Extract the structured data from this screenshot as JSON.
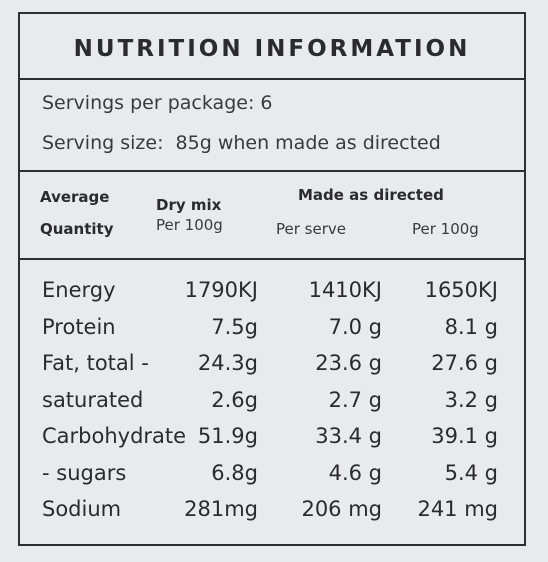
{
  "header": {
    "title": "NUTRITION INFORMATION",
    "servings": "Servings per package: 6",
    "serving_size": "Serving size:  85g when made as directed"
  },
  "table": {
    "header": {
      "average": "Average",
      "quantity": "Quantity",
      "dry_mix": "Dry mix",
      "dry_per100": "Per 100g",
      "made": "Made as directed",
      "made_serve": "Per serve",
      "made_per100": "Per 100g"
    },
    "rows": [
      [
        "Energy",
        "1790KJ",
        "1410KJ",
        "1650KJ"
      ],
      [
        "Protein",
        "7.5g",
        "7.0 g",
        "8.1 g"
      ],
      [
        "Fat, total -",
        "24.3g",
        "23.6 g",
        "27.6 g"
      ],
      [
        "saturated",
        "2.6g",
        "2.7 g",
        "3.2 g"
      ],
      [
        "Carbohydrate",
        "51.9g",
        "33.4 g",
        "39.1 g"
      ],
      [
        "- sugars",
        "6.8g",
        "4.6 g",
        "5.4 g"
      ],
      [
        "Sodium",
        "281mg",
        "206 mg",
        "241 mg"
      ]
    ]
  }
}
